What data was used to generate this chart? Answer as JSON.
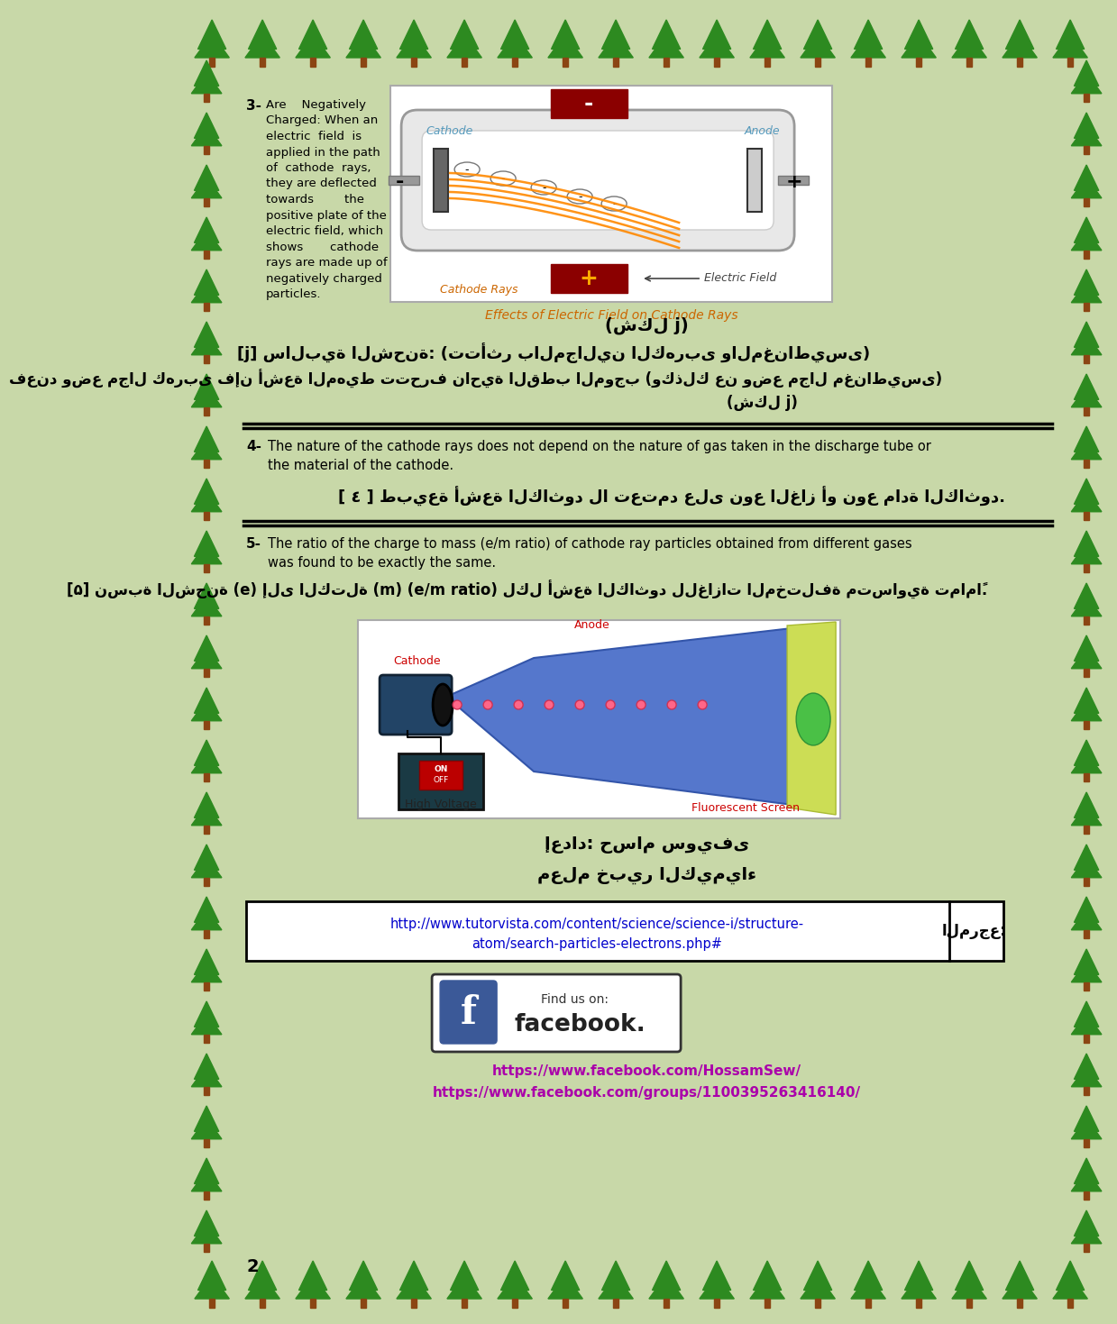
{
  "bg_color": "#c8d8a8",
  "tree_color": "#2d8a20",
  "page_number": "2",
  "section3_number": "3-",
  "section3_en": "Are    Negatively\nCharged: When an\nelectric  field  is\napplied in the path\nof  cathode  rays,\nthey are deflected\ntowards        the\npositive plate of the\nelectric field, which\nshows       cathode\nrays are made up of\nnegatively charged\nparticles.",
  "arabic_fig3_label": "(شكل ϳ)",
  "arabic_section3_title": "[ϳ] سالبية الشحنة: (تتأثر بالمجالين الكهربى والمغناطيسى)",
  "arabic_section3_body": "فعند وضع مجال كهربى فإن أشعة المهيط تتحرف ناحية القطب الموجب (وكذلك عن وضع مجال مغناطيسى)",
  "arabic_section3_body2": "(شكل ϳ)",
  "section4_number": "4-",
  "section4_en": "The nature of the cathode rays does not depend on the nature of gas taken in the discharge tube or\nthe material of the cathode.",
  "arabic_section4": "[ ٤ ] طبيعة أشعة الكاثود لا تعتمد على نوع الغاز أو نوع مادة الكاثود.",
  "section5_number": "5-",
  "section5_en": "The ratio of the charge to mass (e/m ratio) of cathode ray particles obtained from different gases\nwas found to be exactly the same.",
  "arabic_section5": "[۵] نسبة الشحنة (e) إلى الكتلة (m) (e/m ratio) لكل أشعة الكاثود للغازات المختلفة متساوية تماماً.",
  "arabic_prepared": "إعداد: حسام سويفى",
  "arabic_teacher": "معلم خبير الكيمياء",
  "ref_label_arabic": "المرجع:",
  "ref_url_line1": "http://www.tutorvista.com/content/science/science-i/structure-",
  "ref_url_line2": "atom/search-particles-electrons.php#",
  "facebook_url1": "https://www.facebook.com/HossamSew/",
  "facebook_url2": "https://www.facebook.com/groups/1100395263416140/",
  "url_color": "#0000cc",
  "fb_url_color": "#aa00aa"
}
